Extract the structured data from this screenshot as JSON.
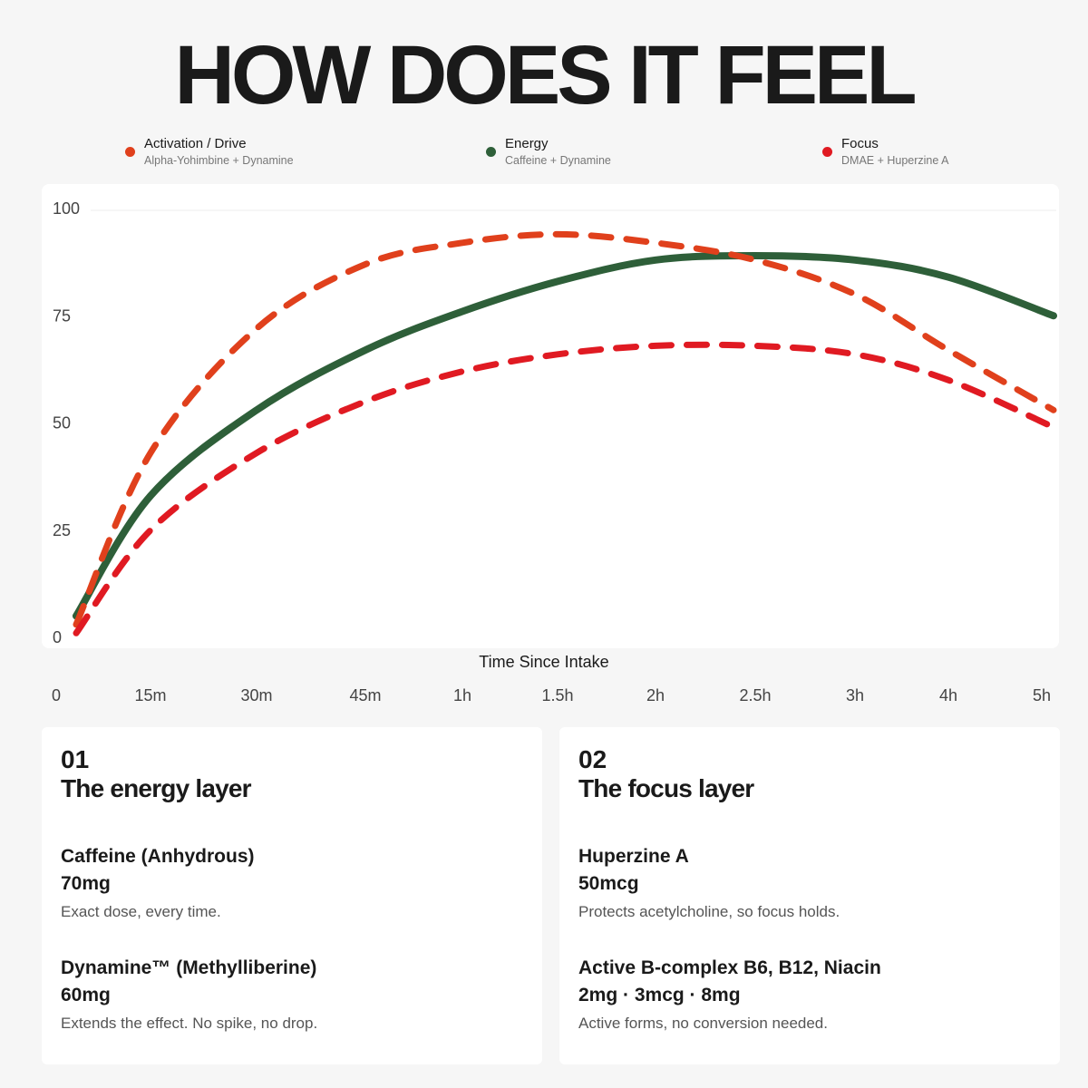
{
  "title": "HOW DOES IT FEEL",
  "legend": [
    {
      "name": "Activation / Drive",
      "sub": "Alpha-Yohimbine + Dynamine",
      "color": "#e0401c"
    },
    {
      "name": "Energy",
      "sub": "Caffeine + Dynamine",
      "color": "#2e5f39"
    },
    {
      "name": "Focus",
      "sub": "DMAE + Huperzine A",
      "color": "#e01a22"
    }
  ],
  "chart_data": {
    "type": "line",
    "title": "",
    "xlabel": "Time Since Intake",
    "ylabel": "",
    "ylim": [
      0,
      100
    ],
    "yticks": [
      "100",
      "75",
      "50",
      "25",
      "0"
    ],
    "xticks": [
      "0",
      "15m",
      "30m",
      "45m",
      "1h",
      "1.5h",
      "2h",
      "2.5h",
      "3h",
      "4h",
      "5h"
    ],
    "grid": "top line only",
    "legend_position": "top",
    "series": [
      {
        "name": "Activation / Drive",
        "style": "dashed",
        "color": "#e0401c",
        "points": [
          [
            "0",
            3
          ],
          [
            "15m",
            43
          ],
          [
            "30m",
            72
          ],
          [
            "45m",
            87
          ],
          [
            "1h",
            92
          ],
          [
            "1.5h",
            94
          ],
          [
            "2h",
            92
          ],
          [
            "2.5h",
            88
          ],
          [
            "3h",
            80
          ],
          [
            "4h",
            67
          ],
          [
            "5h",
            53
          ]
        ]
      },
      {
        "name": "Energy",
        "style": "solid",
        "color": "#2e5f39",
        "points": [
          [
            "0",
            5
          ],
          [
            "15m",
            33
          ],
          [
            "30m",
            53
          ],
          [
            "45m",
            67
          ],
          [
            "1h",
            76
          ],
          [
            "1.5h",
            83
          ],
          [
            "2h",
            88
          ],
          [
            "2.5h",
            89
          ],
          [
            "3h",
            88
          ],
          [
            "4h",
            84
          ],
          [
            "5h",
            75
          ]
        ]
      },
      {
        "name": "Focus",
        "style": "dashed",
        "color": "#e01a22",
        "points": [
          [
            "0",
            1
          ],
          [
            "15m",
            25
          ],
          [
            "30m",
            43
          ],
          [
            "45m",
            55
          ],
          [
            "1h",
            62
          ],
          [
            "1.5h",
            66
          ],
          [
            "2h",
            68
          ],
          [
            "2.5h",
            68
          ],
          [
            "3h",
            66
          ],
          [
            "4h",
            60
          ],
          [
            "5h",
            49
          ]
        ]
      }
    ]
  },
  "cards": [
    {
      "num": "01",
      "heading": "The energy layer",
      "ingredients": [
        {
          "name": "Caffeine (Anhydrous)",
          "dose": "70mg",
          "desc": "Exact dose, every time."
        },
        {
          "name": "Dynamine™ (Methylliberine)",
          "dose": "60mg",
          "desc": "Extends the effect. No spike, no drop."
        }
      ]
    },
    {
      "num": "02",
      "heading": "The focus layer",
      "ingredients": [
        {
          "name": "Huperzine A",
          "dose": "50mcg",
          "desc": "Protects acetylcholine, so focus holds."
        },
        {
          "name": "Active B-complex B6, B12, Niacin",
          "dose": "2mg · 3mcg · 8mg",
          "desc": "Active forms, no conversion needed."
        }
      ]
    }
  ]
}
